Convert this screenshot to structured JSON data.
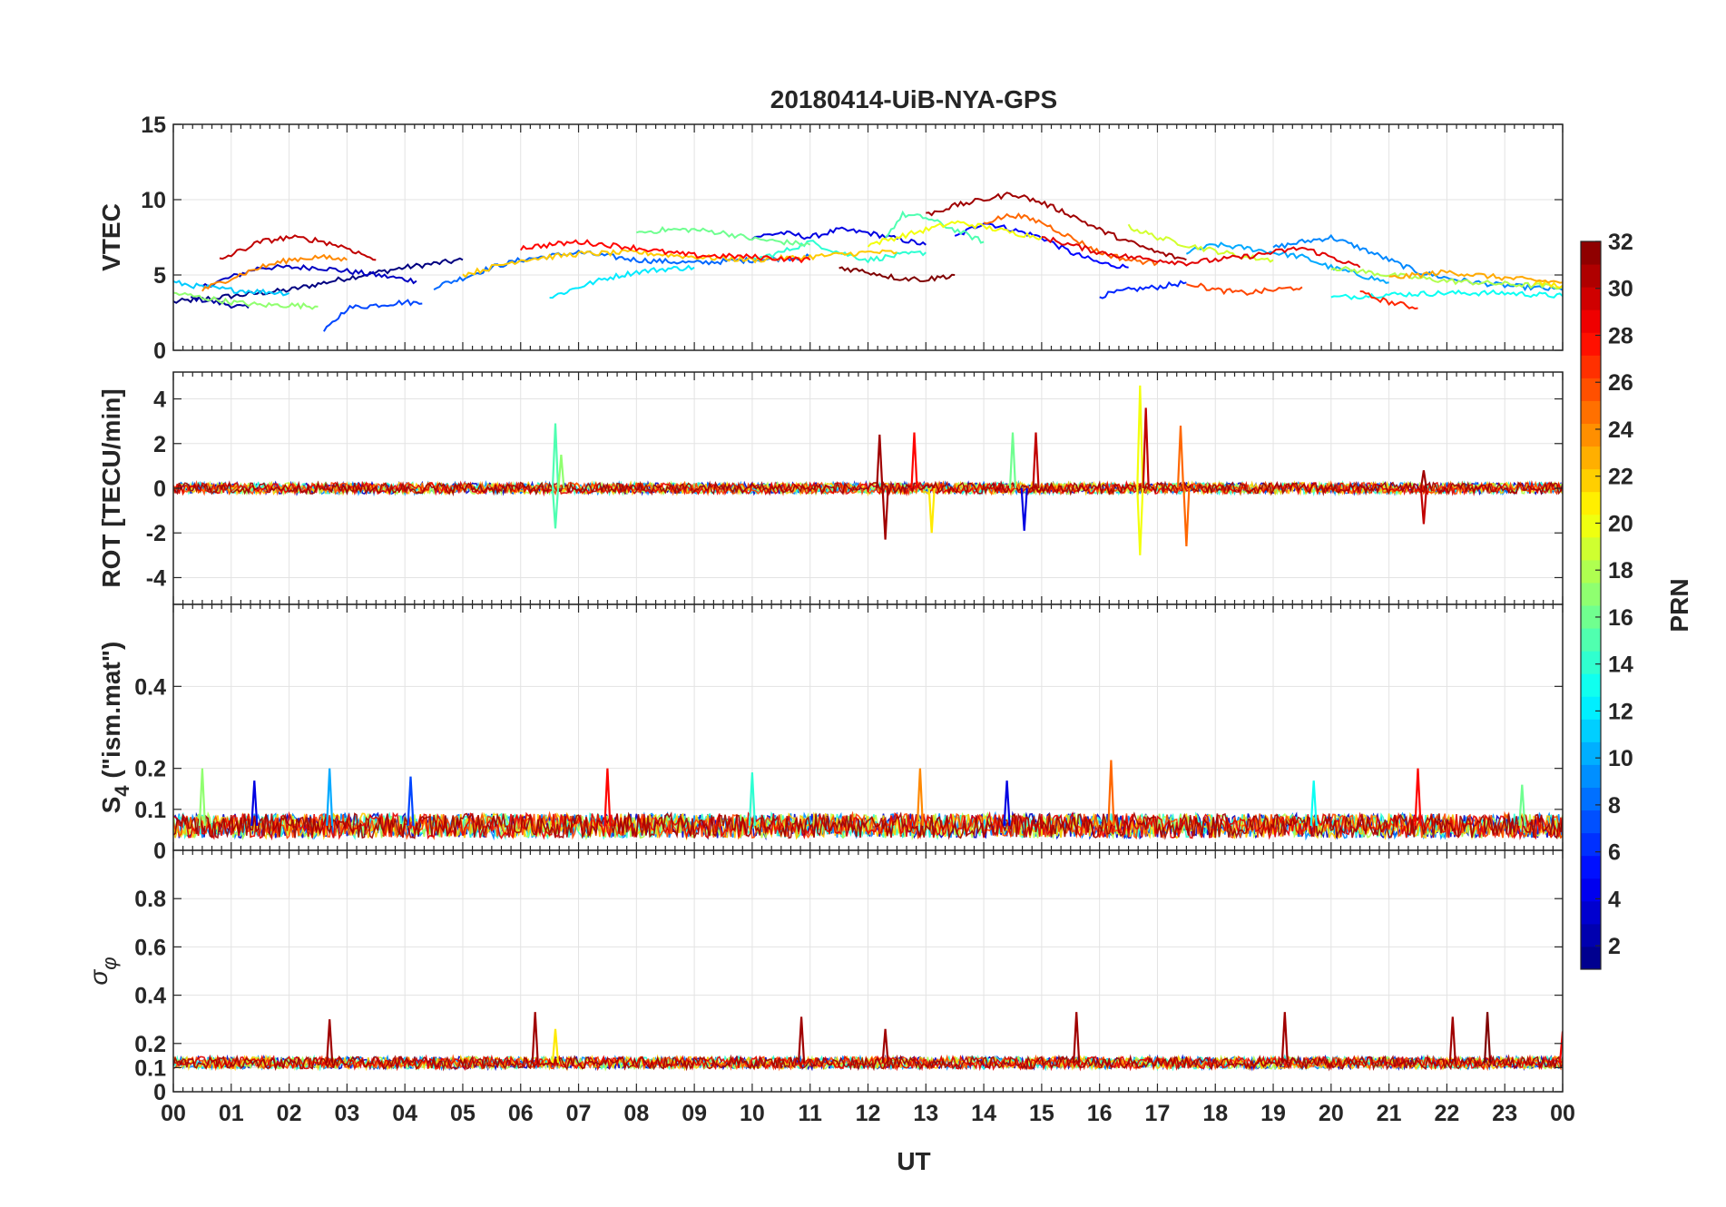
{
  "chart_data": {
    "type": "line",
    "title": "20180414-UiB-NYA-GPS",
    "xlabel": "UT",
    "x_range_hours": [
      0,
      24
    ],
    "x_tick_labels": [
      "00",
      "01",
      "02",
      "03",
      "04",
      "05",
      "06",
      "07",
      "08",
      "09",
      "10",
      "11",
      "12",
      "13",
      "14",
      "15",
      "16",
      "17",
      "18",
      "19",
      "20",
      "21",
      "22",
      "23",
      "00"
    ],
    "grid": true,
    "colorbar": {
      "label": "PRN",
      "range": [
        1,
        32
      ],
      "tick_labels": [
        "2",
        "4",
        "6",
        "8",
        "10",
        "12",
        "14",
        "16",
        "18",
        "20",
        "22",
        "24",
        "26",
        "28",
        "30",
        "32"
      ],
      "tick_values": [
        2,
        4,
        6,
        8,
        10,
        12,
        14,
        16,
        18,
        20,
        22,
        24,
        26,
        28,
        30,
        32
      ],
      "colormap": "jet",
      "placement": "right"
    },
    "panels": [
      {
        "id": "vtec",
        "ylabel": "VTEC",
        "ylim": [
          0,
          15
        ],
        "y_tick_values": [
          0,
          5,
          10,
          15
        ],
        "y_tick_labels": [
          "0",
          "5",
          "10",
          "15"
        ],
        "series": [
          {
            "prn": 1,
            "x": [
              0,
              1,
              2,
              3,
              4,
              5
            ],
            "y": [
              3.2,
              3.6,
              4.0,
              4.8,
              5.5,
              6.0
            ]
          },
          {
            "prn": 2,
            "x": [
              0.3,
              1.0,
              1.3
            ],
            "y": [
              3.5,
              3.0,
              2.8
            ]
          },
          {
            "prn": 3,
            "x": [
              0.5,
              1.5,
              2.5,
              3.5,
              4.2
            ],
            "y": [
              4.2,
              5.5,
              5.5,
              5.0,
              4.6
            ]
          },
          {
            "prn": 4,
            "x": [
              10,
              10.5,
              11,
              11.5,
              12,
              12.5,
              13
            ],
            "y": [
              7.5,
              7.8,
              7.5,
              8.0,
              7.8,
              7.4,
              7.0
            ]
          },
          {
            "prn": 5,
            "x": [
              13.5,
              14,
              14.5,
              15,
              15.5,
              16,
              16.5
            ],
            "y": [
              7.5,
              8.5,
              8.0,
              7.5,
              6.5,
              5.8,
              5.5
            ]
          },
          {
            "prn": 6,
            "x": [
              16,
              16.5,
              17,
              17.5
            ],
            "y": [
              3.6,
              4.0,
              4.2,
              4.5
            ]
          },
          {
            "prn": 7,
            "x": [
              2.6,
              3.0,
              3.5,
              4.0,
              4.3
            ],
            "y": [
              1.2,
              2.8,
              3.0,
              3.2,
              3.1
            ]
          },
          {
            "prn": 8,
            "x": [
              4.5,
              5,
              5.5,
              6,
              7,
              8,
              9,
              10,
              11
            ],
            "y": [
              4.2,
              4.8,
              5.5,
              6.0,
              6.5,
              6.0,
              5.8,
              6.0,
              6.2
            ]
          },
          {
            "prn": 9,
            "x": [
              19,
              19.5,
              20,
              20.5,
              21,
              21.5,
              22,
              22.5,
              23,
              24
            ],
            "y": [
              6.8,
              7.2,
              7.5,
              6.8,
              6.0,
              5.2,
              4.8,
              4.5,
              4.3,
              4.0
            ]
          },
          {
            "prn": 10,
            "x": [
              17.5,
              18,
              18.5,
              19,
              19.5,
              20,
              20.5,
              21
            ],
            "y": [
              6.5,
              7.0,
              6.8,
              6.5,
              6.2,
              5.5,
              5.0,
              4.5
            ]
          },
          {
            "prn": 11,
            "x": [
              0,
              0.5,
              1.0,
              1.5,
              2.0
            ],
            "y": [
              4.5,
              4.2,
              4.0,
              3.9,
              3.8
            ]
          },
          {
            "prn": 12,
            "x": [
              6.5,
              7,
              7.5,
              8,
              8.5,
              9
            ],
            "y": [
              3.5,
              4.2,
              4.8,
              5.2,
              5.4,
              5.5
            ]
          },
          {
            "prn": 13,
            "x": [
              20,
              21,
              22,
              23,
              24
            ],
            "y": [
              3.5,
              3.7,
              3.8,
              3.8,
              3.6
            ]
          },
          {
            "prn": 14,
            "x": [
              10,
              10.5,
              11,
              11.5,
              12,
              12.5,
              13
            ],
            "y": [
              6.0,
              6.5,
              7.2,
              6.5,
              6.0,
              6.3,
              6.5
            ]
          },
          {
            "prn": 15,
            "x": [
              12.3,
              12.6,
              13,
              13.5,
              14
            ],
            "y": [
              7.5,
              9.0,
              8.8,
              8.0,
              7.2
            ]
          },
          {
            "prn": 16,
            "x": [
              8,
              8.5,
              9,
              9.5,
              10,
              10.5,
              11
            ],
            "y": [
              7.8,
              8.0,
              8.0,
              7.8,
              7.4,
              7.2,
              7.0
            ]
          },
          {
            "prn": 17,
            "x": [
              0,
              0.5,
              1,
              1.5,
              2.0,
              2.5
            ],
            "y": [
              3.8,
              3.5,
              3.2,
              3.0,
              3.0,
              2.9
            ]
          },
          {
            "prn": 18,
            "x": [
              20,
              21,
              22,
              23,
              24
            ],
            "y": [
              5.5,
              5.0,
              4.6,
              4.4,
              4.2
            ]
          },
          {
            "prn": 19,
            "x": [
              16.5,
              17,
              17.5,
              18,
              18.5,
              19
            ],
            "y": [
              8.2,
              7.5,
              7.0,
              6.6,
              6.2,
              6.0
            ]
          },
          {
            "prn": 20,
            "x": [
              12,
              12.5,
              13,
              13.5,
              14,
              14.5,
              15
            ],
            "y": [
              7.0,
              7.5,
              8.0,
              8.5,
              8.2,
              7.8,
              7.5
            ]
          },
          {
            "prn": 21,
            "x": [
              23.5,
              24
            ],
            "y": [
              4.5,
              4.3
            ]
          },
          {
            "prn": 22,
            "x": [
              5,
              5.5,
              6,
              7,
              8,
              9,
              10,
              11,
              12,
              12.5
            ],
            "y": [
              5.0,
              5.5,
              6.0,
              6.4,
              6.5,
              6.2,
              6.0,
              6.2,
              6.5,
              6.5
            ]
          },
          {
            "prn": 23,
            "x": [
              21,
              21.5,
              22,
              22.5,
              23,
              24
            ],
            "y": [
              4.8,
              5.0,
              5.2,
              5.0,
              4.8,
              4.5
            ]
          },
          {
            "prn": 24,
            "x": [
              0.5,
              1.0,
              1.5,
              2.0,
              2.5,
              3.0
            ],
            "y": [
              4.0,
              4.8,
              5.5,
              6.0,
              6.2,
              6.0
            ]
          },
          {
            "prn": 25,
            "x": [
              14,
              14.5,
              15,
              15.5,
              16,
              16.5,
              17
            ],
            "y": [
              8.5,
              9.0,
              8.5,
              7.5,
              6.5,
              6.0,
              5.8
            ]
          },
          {
            "prn": 26,
            "x": [
              17.5,
              18,
              18.5,
              19,
              19.5
            ],
            "y": [
              4.5,
              4.0,
              3.8,
              4.0,
              4.2
            ]
          },
          {
            "prn": 27,
            "x": [
              20.5,
              21,
              21.5
            ],
            "y": [
              3.8,
              3.2,
              2.8
            ]
          },
          {
            "prn": 28,
            "x": [
              6,
              6.5,
              7,
              7.5,
              8,
              8.5,
              9,
              10,
              11
            ],
            "y": [
              6.8,
              7.0,
              7.2,
              7.0,
              6.8,
              6.5,
              6.3,
              6.2,
              6.0
            ]
          },
          {
            "prn": 29,
            "x": [
              15,
              15.5,
              16,
              16.5,
              17,
              17.5,
              18,
              18.5,
              19,
              19.5,
              20,
              20.5
            ],
            "y": [
              7.5,
              7.0,
              6.5,
              6.2,
              6.0,
              5.8,
              6.0,
              6.2,
              6.5,
              6.8,
              6.2,
              5.5
            ]
          },
          {
            "prn": 30,
            "x": [
              0.8,
              1.5,
              2.0,
              2.5,
              3.0,
              3.5
            ],
            "y": [
              6.0,
              7.2,
              7.5,
              7.3,
              6.8,
              6.0
            ]
          },
          {
            "prn": 31,
            "x": [
              13,
              13.5,
              14,
              14.5,
              15,
              15.5,
              16,
              16.5,
              17,
              17.5
            ],
            "y": [
              9.0,
              9.6,
              10.0,
              10.4,
              9.8,
              9.0,
              8.0,
              7.2,
              6.5,
              6.0
            ]
          },
          {
            "prn": 32,
            "x": [
              11.5,
              12,
              12.5,
              13,
              13.5
            ],
            "y": [
              5.5,
              5.2,
              4.8,
              4.7,
              5.0
            ]
          }
        ]
      },
      {
        "id": "rot",
        "ylabel": "ROT [TECU/min]",
        "ylim": [
          -5.2,
          5.2
        ],
        "y_tick_values": [
          -4,
          -2,
          0,
          2,
          4
        ],
        "y_tick_labels": [
          "-4",
          "-2",
          "0",
          "2",
          "4"
        ],
        "baseline": 0,
        "noise_amplitude": 0.25,
        "spikes": [
          {
            "x": 6.6,
            "y": 2.9,
            "prn": 15
          },
          {
            "x": 6.6,
            "y": -1.8,
            "prn": 15
          },
          {
            "x": 6.7,
            "y": 1.5,
            "prn": 17
          },
          {
            "x": 12.2,
            "y": 2.4,
            "prn": 31
          },
          {
            "x": 12.3,
            "y": -2.3,
            "prn": 31
          },
          {
            "x": 12.8,
            "y": 2.5,
            "prn": 28
          },
          {
            "x": 13.1,
            "y": -2.0,
            "prn": 21
          },
          {
            "x": 14.5,
            "y": 2.5,
            "prn": 16
          },
          {
            "x": 14.7,
            "y": -1.9,
            "prn": 4
          },
          {
            "x": 14.9,
            "y": 2.5,
            "prn": 30
          },
          {
            "x": 16.7,
            "y": 4.6,
            "prn": 20
          },
          {
            "x": 16.7,
            "y": -3.0,
            "prn": 20
          },
          {
            "x": 16.8,
            "y": 3.6,
            "prn": 30
          },
          {
            "x": 17.4,
            "y": 2.8,
            "prn": 25
          },
          {
            "x": 17.5,
            "y": -2.6,
            "prn": 25
          },
          {
            "x": 21.6,
            "y": -1.6,
            "prn": 30
          },
          {
            "x": 21.6,
            "y": 0.8,
            "prn": 31
          }
        ]
      },
      {
        "id": "s4",
        "ylabel": "S_4 (\"ism.mat\")",
        "ylabel_main": "S",
        "ylabel_sub": "4",
        "ylabel_rest": " (\"ism.mat\")",
        "ylim": [
          0,
          0.6
        ],
        "y_tick_values": [
          0,
          0.1,
          0.2,
          0.4
        ],
        "y_tick_labels": [
          "0",
          "0.1",
          "0.2",
          "0.4"
        ],
        "baseline": 0.06,
        "noise_amplitude": 0.03,
        "spikes": [
          {
            "x": 0.5,
            "y": 0.2,
            "prn": 17
          },
          {
            "x": 1.4,
            "y": 0.17,
            "prn": 4
          },
          {
            "x": 2.7,
            "y": 0.2,
            "prn": 10
          },
          {
            "x": 4.1,
            "y": 0.18,
            "prn": 7
          },
          {
            "x": 7.5,
            "y": 0.2,
            "prn": 28
          },
          {
            "x": 10.0,
            "y": 0.19,
            "prn": 14
          },
          {
            "x": 12.9,
            "y": 0.2,
            "prn": 24
          },
          {
            "x": 14.4,
            "y": 0.17,
            "prn": 4
          },
          {
            "x": 16.2,
            "y": 0.22,
            "prn": 25
          },
          {
            "x": 19.7,
            "y": 0.17,
            "prn": 13
          },
          {
            "x": 21.5,
            "y": 0.2,
            "prn": 28
          },
          {
            "x": 23.3,
            "y": 0.16,
            "prn": 16
          }
        ]
      },
      {
        "id": "sigma-phi",
        "ylabel": "σ_φ",
        "ylabel_main": "σ",
        "ylabel_sub": "φ",
        "ylim": [
          0,
          1.0
        ],
        "y_tick_values": [
          0,
          0.1,
          0.2,
          0.4,
          0.6,
          0.8
        ],
        "y_tick_labels": [
          "0",
          "0.1",
          "0.2",
          "0.4",
          "0.6",
          "0.8"
        ],
        "baseline": 0.12,
        "noise_amplitude": 0.025,
        "spikes": [
          {
            "x": 2.7,
            "y": 0.3,
            "prn": 31
          },
          {
            "x": 6.25,
            "y": 0.33,
            "prn": 31
          },
          {
            "x": 6.6,
            "y": 0.26,
            "prn": 21
          },
          {
            "x": 10.85,
            "y": 0.31,
            "prn": 31
          },
          {
            "x": 12.3,
            "y": 0.26,
            "prn": 31
          },
          {
            "x": 15.6,
            "y": 0.33,
            "prn": 31
          },
          {
            "x": 19.2,
            "y": 0.33,
            "prn": 31
          },
          {
            "x": 22.1,
            "y": 0.31,
            "prn": 31
          },
          {
            "x": 22.7,
            "y": 0.33,
            "prn": 32
          },
          {
            "x": 24.0,
            "y": 0.25,
            "prn": 28
          }
        ]
      }
    ]
  }
}
